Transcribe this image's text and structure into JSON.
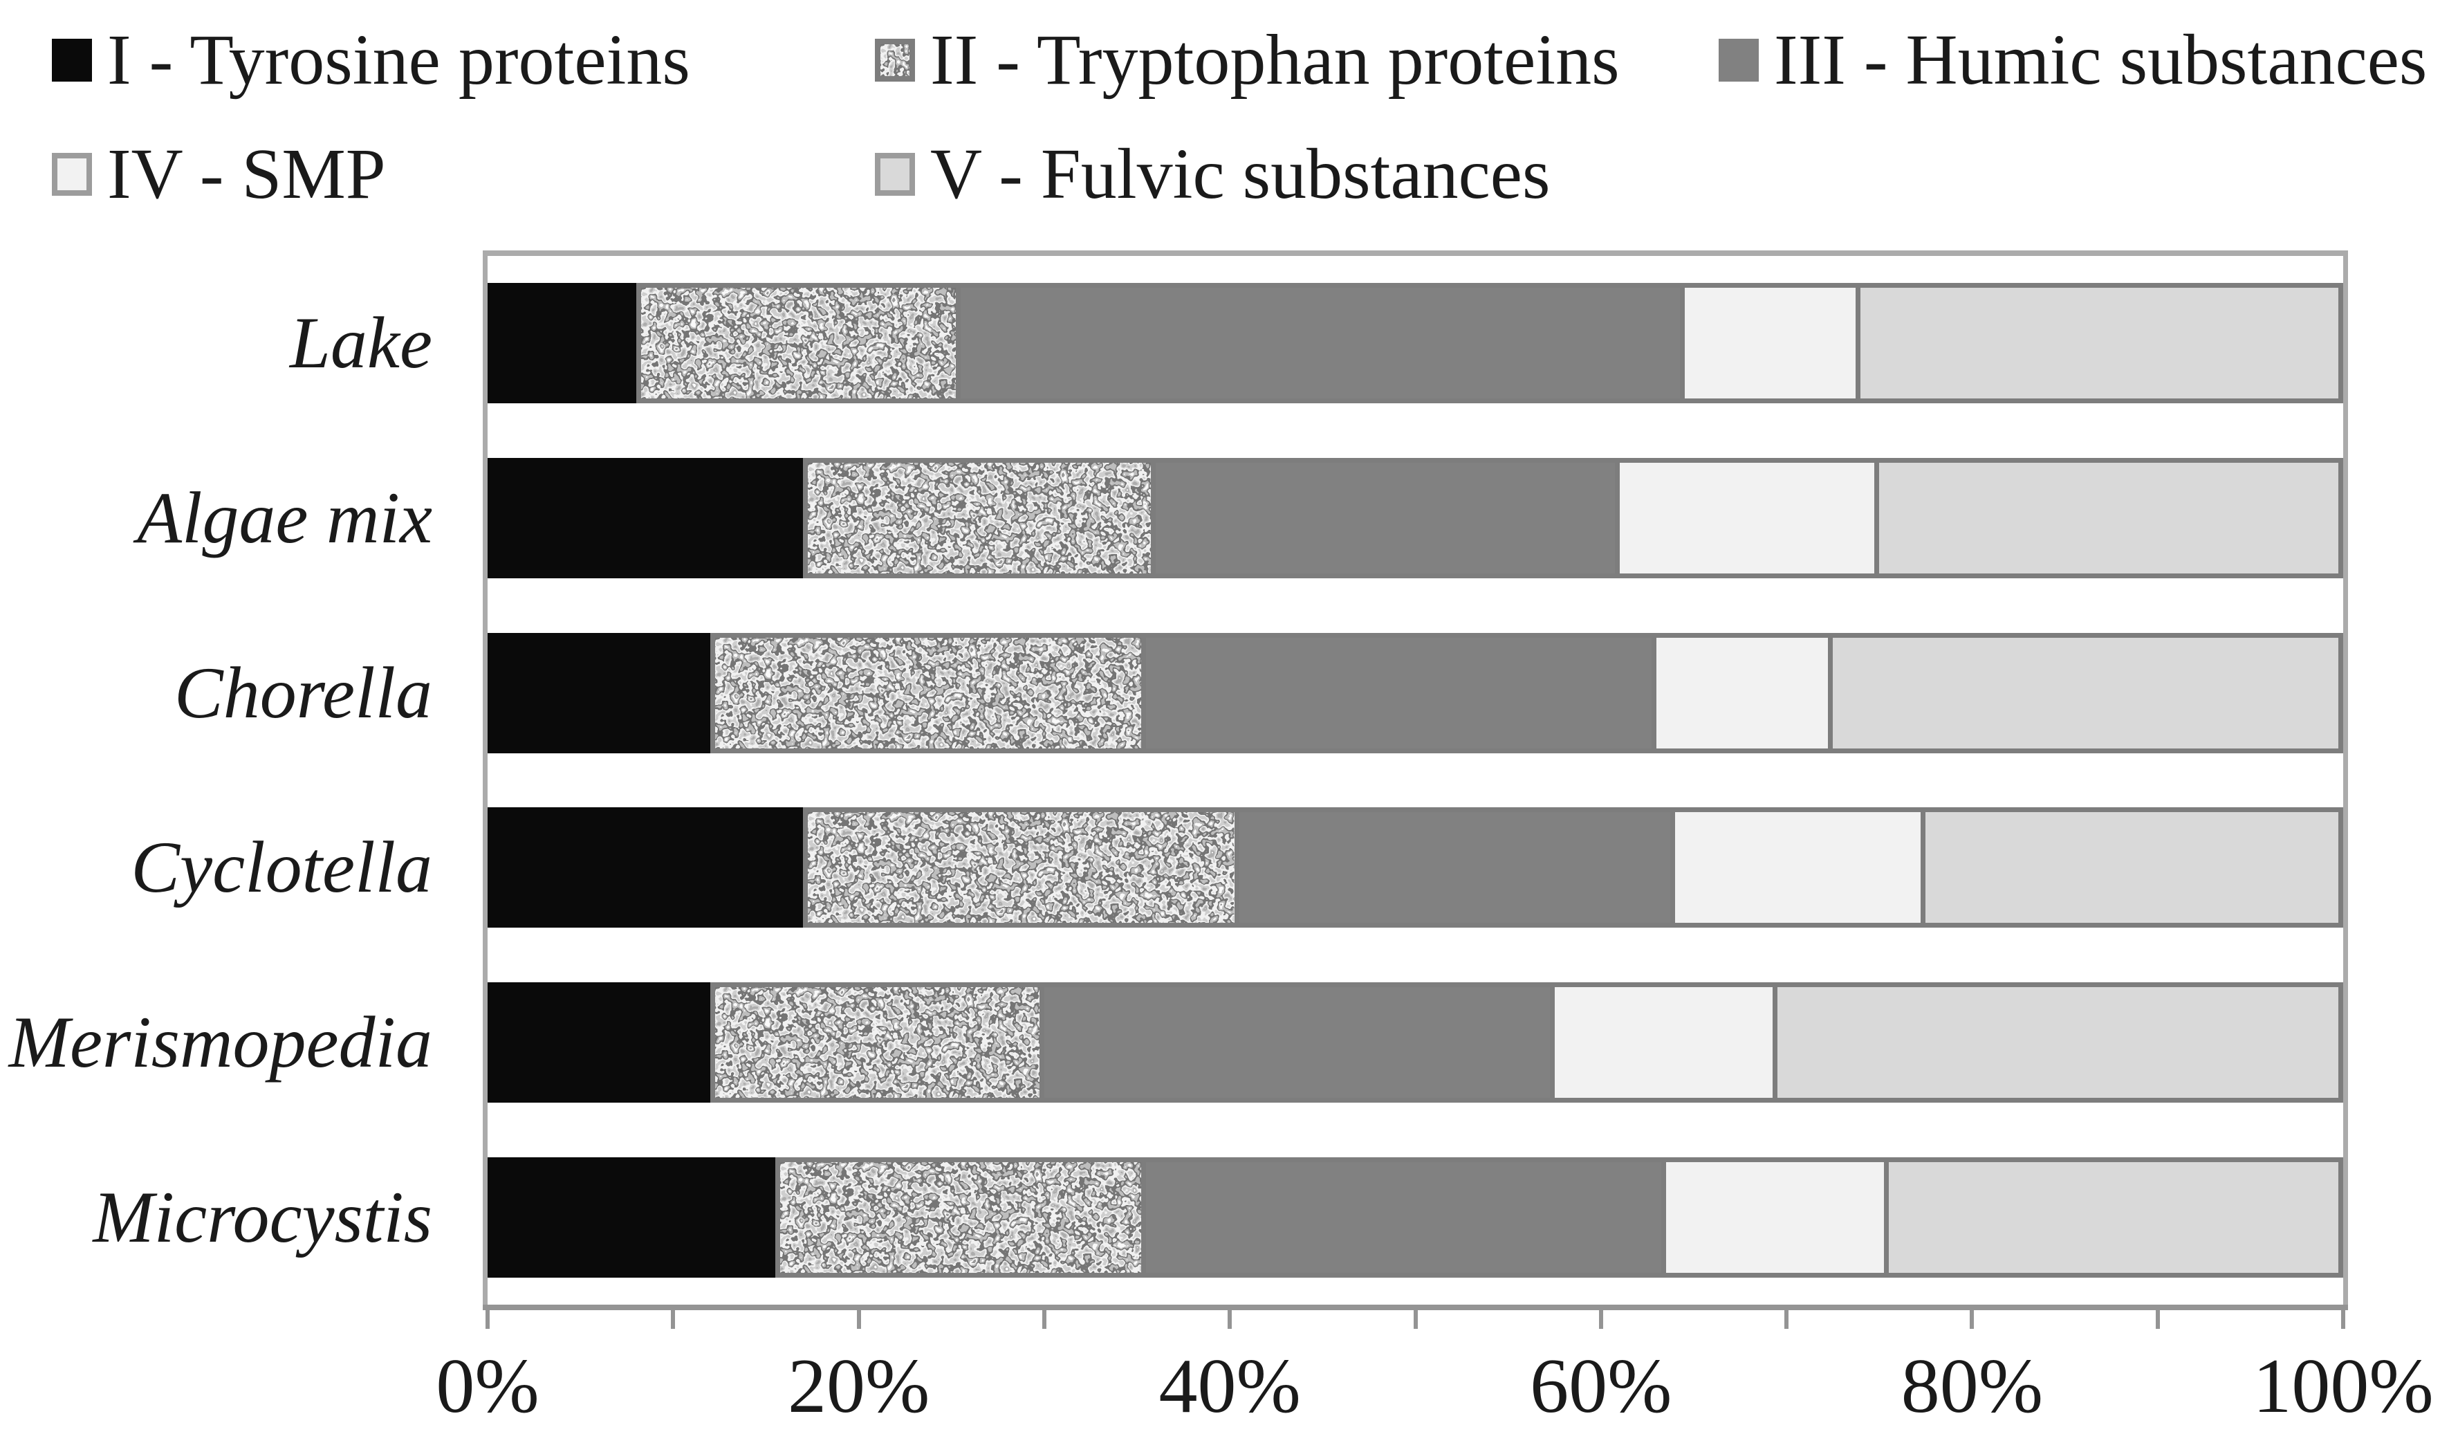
{
  "figure_type": "stacked-horizontal-bar-chart",
  "legend": {
    "items": [
      {
        "key": "tyrosine",
        "label": "I - Tyrosine proteins",
        "swatch": "solid-black"
      },
      {
        "key": "tryptophan",
        "label": "II - Tryptophan proteins",
        "swatch": "speckled"
      },
      {
        "key": "humic",
        "label": "III - Humic substances",
        "swatch": "solid-gray"
      },
      {
        "key": "smp",
        "label": "IV - SMP",
        "swatch": "light-bordered-smp"
      },
      {
        "key": "fulvic",
        "label": "V - Fulvic substances",
        "swatch": "light-bordered-fulvic"
      }
    ]
  },
  "chart_data": {
    "type": "bar",
    "orientation": "horizontal",
    "stacked": true,
    "units": "percent of total fluorescence",
    "xlim": [
      0,
      100
    ],
    "x_tick_labels": [
      "0%",
      "20%",
      "40%",
      "60%",
      "80%",
      "100%"
    ],
    "minor_tick_step_percent": 10,
    "grid": false,
    "legend_position": "top",
    "plot_background": "#ffffff",
    "categories": [
      "Lake",
      "Algae mix",
      "Chorella",
      "Cyclotella",
      "Merismopedia",
      "Microcystis"
    ],
    "series": [
      {
        "name": "I - Tyrosine proteins",
        "values": [
          8,
          17,
          12,
          17,
          12,
          15.5
        ]
      },
      {
        "name": "II - Tryptophan proteins",
        "values": [
          17.5,
          19,
          23.5,
          23.5,
          18,
          20
        ]
      },
      {
        "name": "III - Humic substances",
        "values": [
          39,
          25,
          27.5,
          23.5,
          27.5,
          28
        ]
      },
      {
        "name": "IV - SMP",
        "values": [
          9.5,
          14,
          9.5,
          13.5,
          12,
          12
        ]
      },
      {
        "name": "V - Fulvic substances",
        "values": [
          26,
          25,
          27.5,
          22.5,
          30.5,
          24.5
        ]
      }
    ]
  },
  "colors": {
    "tyrosine": "#0a0a0a",
    "tryptophan_base": "#c9c9c9",
    "humic": "#818181",
    "smp": "#f2f2f2",
    "fulvic": "#d9d9d9",
    "segment_border": "#7d7d7d",
    "plot_frame": "#ababab",
    "axis": "#949494",
    "text": "#1a1a1a"
  }
}
